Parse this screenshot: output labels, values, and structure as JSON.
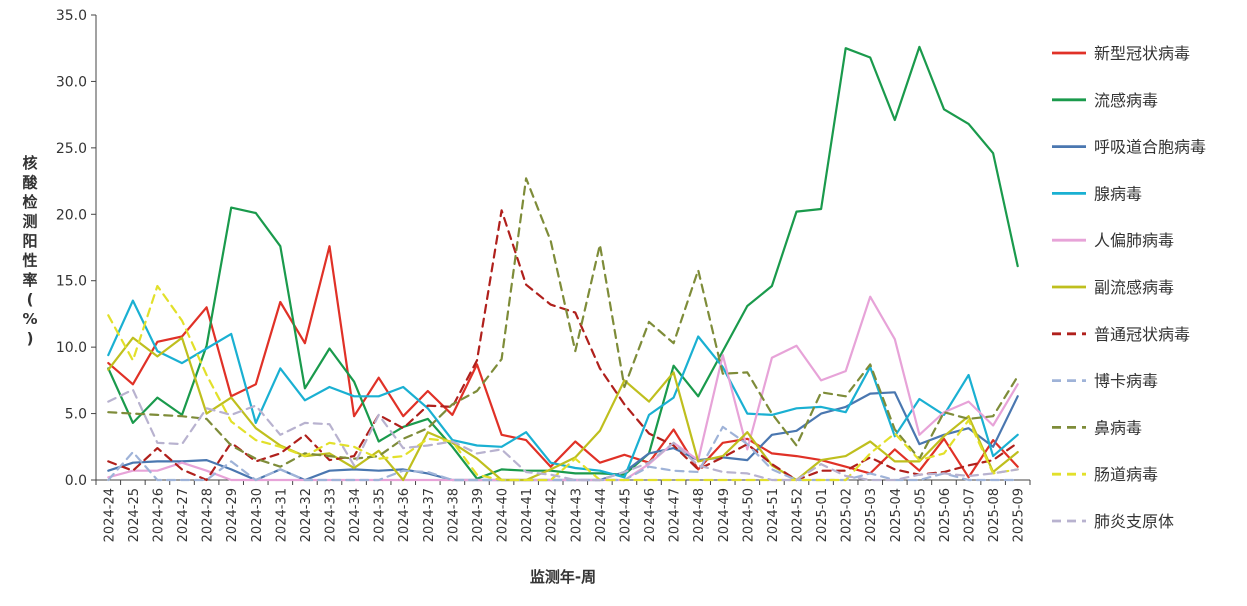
{
  "chart_data": {
    "type": "line",
    "xlabel": "监测年-周",
    "ylabel": "核酸检测阳性率(%)",
    "ylim": [
      0,
      35
    ],
    "yticks": [
      "0.0",
      "5.0",
      "10.0",
      "15.0",
      "20.0",
      "25.0",
      "30.0",
      "35.0"
    ],
    "grid": false,
    "legend_position": "right",
    "categories": [
      "2024-24",
      "2024-25",
      "2024-26",
      "2024-27",
      "2024-28",
      "2024-29",
      "2024-30",
      "2024-31",
      "2024-32",
      "2024-33",
      "2024-34",
      "2024-35",
      "2024-36",
      "2024-37",
      "2024-38",
      "2024-39",
      "2024-40",
      "2024-41",
      "2024-42",
      "2024-43",
      "2024-44",
      "2024-45",
      "2024-46",
      "2024-47",
      "2024-48",
      "2024-49",
      "2024-50",
      "2024-51",
      "2024-52",
      "2025-01",
      "2025-02",
      "2025-03",
      "2025-04",
      "2025-05",
      "2025-06",
      "2025-07",
      "2025-08",
      "2025-09"
    ],
    "series": [
      {
        "name": "新型冠状病毒",
        "color": "#e03127",
        "dash": "solid",
        "values": [
          8.8,
          7.2,
          10.4,
          10.8,
          13.0,
          6.3,
          7.2,
          13.4,
          10.3,
          17.6,
          4.8,
          7.7,
          4.8,
          6.7,
          4.9,
          8.7,
          3.4,
          3.0,
          1.0,
          2.9,
          1.3,
          1.9,
          1.3,
          3.8,
          0.8,
          2.8,
          3.1,
          2.0,
          1.8,
          1.5,
          1.0,
          0.5,
          2.3,
          0.7,
          3.1,
          0.2,
          3.0,
          1.0
        ]
      },
      {
        "name": "流感病毒",
        "color": "#1a9a4c",
        "dash": "solid",
        "values": [
          8.4,
          4.3,
          6.2,
          4.9,
          10.1,
          20.5,
          20.1,
          17.6,
          6.9,
          9.9,
          7.4,
          2.9,
          4.0,
          4.6,
          2.5,
          0.1,
          0.8,
          0.7,
          0.7,
          0.5,
          0.5,
          0.4,
          2.0,
          8.6,
          6.3,
          9.7,
          13.1,
          14.6,
          20.2,
          20.4,
          32.5,
          31.8,
          27.1,
          32.6,
          27.9,
          26.8,
          24.6,
          16.1
        ]
      },
      {
        "name": "呼吸道合胞病毒",
        "color": "#4a77b0",
        "dash": "solid",
        "values": [
          0.7,
          1.3,
          1.4,
          1.4,
          1.5,
          0.8,
          0.0,
          0.8,
          0.0,
          0.7,
          0.8,
          0.7,
          0.8,
          0.5,
          0.0,
          0.0,
          0.0,
          0.0,
          0.0,
          0.0,
          0.0,
          0.6,
          2.0,
          2.4,
          1.5,
          1.7,
          1.5,
          3.4,
          3.7,
          5.0,
          5.5,
          6.5,
          6.6,
          2.7,
          3.4,
          3.9,
          2.5,
          6.3
        ]
      },
      {
        "name": "腺病毒",
        "color": "#1ab0d2",
        "dash": "solid",
        "values": [
          9.4,
          13.5,
          9.7,
          8.8,
          9.9,
          11.0,
          4.3,
          8.4,
          6.0,
          7.0,
          6.3,
          6.3,
          7.0,
          5.4,
          3.0,
          2.6,
          2.5,
          3.6,
          1.3,
          0.9,
          0.7,
          0.2,
          4.9,
          6.2,
          10.8,
          8.5,
          5.0,
          4.9,
          5.4,
          5.5,
          5.1,
          8.5,
          3.3,
          6.1,
          4.9,
          7.9,
          1.8,
          3.4
        ]
      },
      {
        "name": "人偏肺病毒",
        "color": "#e7a3d8",
        "dash": "solid",
        "values": [
          0.2,
          0.7,
          0.7,
          1.3,
          0.7,
          0.0,
          0.0,
          0.0,
          0.0,
          0.0,
          0.0,
          0.0,
          0.0,
          0.0,
          0.0,
          0.0,
          0.0,
          0.0,
          0.0,
          0.0,
          0.0,
          0.0,
          1.2,
          2.8,
          1.5,
          9.4,
          2.3,
          9.2,
          10.1,
          7.5,
          8.2,
          13.8,
          10.6,
          3.4,
          5.1,
          5.9,
          4.1,
          7.2
        ]
      },
      {
        "name": "副流感病毒",
        "color": "#bfbf1e",
        "dash": "solid",
        "values": [
          8.3,
          10.7,
          9.3,
          10.7,
          5.0,
          6.2,
          3.9,
          2.6,
          1.8,
          2.0,
          0.9,
          2.2,
          0.0,
          3.6,
          2.8,
          1.6,
          0.0,
          0.0,
          0.8,
          1.7,
          3.7,
          7.5,
          5.9,
          8.1,
          1.4,
          1.8,
          3.6,
          1.1,
          0.0,
          1.5,
          1.8,
          2.9,
          1.4,
          1.4,
          3.3,
          4.8,
          0.6,
          2.1
        ]
      },
      {
        "name": "普通冠状病毒",
        "color": "#b0201c",
        "dash": "dash",
        "values": [
          1.4,
          0.7,
          2.4,
          0.8,
          0.0,
          2.8,
          1.4,
          2.0,
          3.4,
          1.5,
          1.8,
          4.9,
          3.9,
          5.6,
          5.5,
          9.0,
          20.3,
          14.7,
          13.2,
          12.6,
          8.4,
          5.7,
          3.5,
          2.6,
          0.8,
          1.7,
          2.7,
          1.2,
          0.0,
          0.7,
          0.7,
          1.7,
          0.8,
          0.4,
          0.6,
          1.1,
          1.5,
          2.8
        ]
      },
      {
        "name": "博卡病毒",
        "color": "#9fb3d8",
        "dash": "dash",
        "values": [
          0.0,
          2.1,
          0.0,
          0.0,
          0.0,
          1.4,
          0.0,
          0.8,
          0.0,
          0.0,
          0.0,
          0.0,
          0.7,
          0.6,
          0.0,
          0.0,
          0.0,
          0.0,
          0.0,
          0.0,
          0.0,
          0.0,
          1.0,
          0.7,
          0.6,
          4.0,
          2.7,
          0.8,
          0.0,
          0.0,
          0.0,
          0.5,
          0.0,
          0.0,
          0.5,
          0.0,
          0.0,
          0.0
        ]
      },
      {
        "name": "鼻病毒",
        "color": "#7e8c39",
        "dash": "dash",
        "values": [
          5.1,
          5.0,
          4.9,
          4.8,
          4.6,
          2.6,
          1.6,
          1.0,
          2.0,
          1.8,
          1.6,
          1.8,
          3.1,
          3.9,
          5.7,
          6.7,
          9.1,
          22.7,
          18.0,
          9.7,
          17.7,
          7.0,
          11.9,
          10.3,
          15.8,
          8.0,
          8.1,
          5.0,
          2.6,
          6.6,
          6.3,
          8.7,
          3.8,
          1.6,
          5.1,
          4.6,
          4.8,
          7.8
        ]
      },
      {
        "name": "肠道病毒",
        "color": "#e2e02a",
        "dash": "dash",
        "values": [
          12.4,
          9.0,
          14.6,
          12.0,
          7.9,
          4.4,
          3.0,
          2.5,
          1.8,
          2.8,
          2.5,
          1.6,
          1.8,
          3.1,
          2.9,
          0.4,
          0.0,
          0.0,
          0.0,
          1.6,
          0.0,
          0.0,
          0.0,
          0.0,
          0.0,
          0.0,
          0.0,
          0.0,
          0.0,
          0.0,
          0.0,
          2.0,
          3.5,
          1.5,
          2.0,
          4.5,
          0.5,
          0.8
        ]
      },
      {
        "name": "肺炎支原体",
        "color": "#b8b2cf",
        "dash": "dash",
        "values": [
          5.9,
          6.8,
          2.8,
          2.7,
          5.4,
          4.9,
          5.6,
          3.4,
          4.3,
          4.2,
          1.1,
          4.9,
          2.4,
          2.6,
          2.9,
          2.0,
          2.3,
          0.6,
          0.4,
          0.0,
          0.0,
          0.6,
          1.3,
          2.8,
          1.1,
          0.6,
          0.5,
          0.0,
          0.0,
          1.2,
          0.3,
          0.0,
          0.0,
          0.4,
          0.5,
          0.3,
          0.5,
          0.8
        ]
      }
    ]
  }
}
